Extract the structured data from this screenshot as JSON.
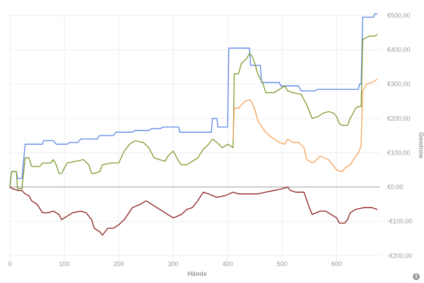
{
  "chart_data": {
    "type": "line",
    "xlabel": "Hände",
    "ylabel": "Gewinne",
    "xlim": [
      0,
      680
    ],
    "ylim": [
      -220,
      500
    ],
    "x_ticks": [
      0,
      100,
      200,
      300,
      400,
      500,
      600
    ],
    "x_tick_labels": [
      "0",
      "100",
      "200",
      "300",
      "400",
      "500",
      "600"
    ],
    "y_ticks": [
      500,
      400,
      300,
      200,
      100,
      0,
      -100,
      -200
    ],
    "y_tick_labels": [
      "€500,00",
      "€400,00",
      "€300,00",
      "€200,00",
      "€100,00",
      "€0,00",
      "-€100,00",
      "-€200,00"
    ],
    "grid": true,
    "series": [
      {
        "color": "#5b84e8",
        "points": [
          [
            0,
            0
          ],
          [
            3,
            45
          ],
          [
            12,
            45
          ],
          [
            14,
            25
          ],
          [
            22,
            25
          ],
          [
            28,
            125
          ],
          [
            60,
            125
          ],
          [
            62,
            135
          ],
          [
            80,
            135
          ],
          [
            85,
            125
          ],
          [
            105,
            125
          ],
          [
            110,
            130
          ],
          [
            125,
            130
          ],
          [
            130,
            140
          ],
          [
            160,
            140
          ],
          [
            165,
            150
          ],
          [
            190,
            150
          ],
          [
            195,
            160
          ],
          [
            225,
            160
          ],
          [
            230,
            165
          ],
          [
            255,
            165
          ],
          [
            260,
            170
          ],
          [
            275,
            170
          ],
          [
            282,
            175
          ],
          [
            310,
            175
          ],
          [
            312,
            160
          ],
          [
            370,
            160
          ],
          [
            372,
            200
          ],
          [
            380,
            200
          ],
          [
            382,
            175
          ],
          [
            400,
            175
          ],
          [
            402,
            405
          ],
          [
            440,
            405
          ],
          [
            442,
            355
          ],
          [
            460,
            355
          ],
          [
            462,
            305
          ],
          [
            495,
            305
          ],
          [
            497,
            295
          ],
          [
            530,
            295
          ],
          [
            535,
            280
          ],
          [
            560,
            280
          ],
          [
            565,
            285
          ],
          [
            640,
            285
          ],
          [
            642,
            300
          ],
          [
            645,
            300
          ],
          [
            648,
            495
          ],
          [
            668,
            495
          ],
          [
            670,
            505
          ],
          [
            675,
            505
          ]
        ]
      },
      {
        "color": "#7a9a2a",
        "points": [
          [
            0,
            0
          ],
          [
            3,
            45
          ],
          [
            12,
            45
          ],
          [
            14,
            -5
          ],
          [
            22,
            -5
          ],
          [
            28,
            85
          ],
          [
            35,
            85
          ],
          [
            40,
            60
          ],
          [
            55,
            60
          ],
          [
            60,
            70
          ],
          [
            75,
            70
          ],
          [
            80,
            80
          ],
          [
            85,
            65
          ],
          [
            90,
            40
          ],
          [
            95,
            40
          ],
          [
            100,
            55
          ],
          [
            105,
            70
          ],
          [
            120,
            75
          ],
          [
            135,
            80
          ],
          [
            145,
            65
          ],
          [
            150,
            40
          ],
          [
            155,
            40
          ],
          [
            165,
            45
          ],
          [
            170,
            65
          ],
          [
            185,
            70
          ],
          [
            200,
            70
          ],
          [
            210,
            105
          ],
          [
            220,
            125
          ],
          [
            230,
            135
          ],
          [
            245,
            130
          ],
          [
            255,
            115
          ],
          [
            265,
            85
          ],
          [
            275,
            80
          ],
          [
            285,
            75
          ],
          [
            290,
            90
          ],
          [
            300,
            105
          ],
          [
            305,
            90
          ],
          [
            310,
            75
          ],
          [
            315,
            65
          ],
          [
            325,
            65
          ],
          [
            335,
            75
          ],
          [
            345,
            85
          ],
          [
            355,
            110
          ],
          [
            365,
            125
          ],
          [
            372,
            140
          ],
          [
            380,
            130
          ],
          [
            390,
            115
          ],
          [
            400,
            125
          ],
          [
            410,
            115
          ],
          [
            412,
            330
          ],
          [
            420,
            330
          ],
          [
            425,
            360
          ],
          [
            435,
            375
          ],
          [
            440,
            390
          ],
          [
            445,
            380
          ],
          [
            450,
            360
          ],
          [
            455,
            330
          ],
          [
            465,
            300
          ],
          [
            470,
            275
          ],
          [
            485,
            275
          ],
          [
            490,
            280
          ],
          [
            505,
            295
          ],
          [
            510,
            280
          ],
          [
            520,
            275
          ],
          [
            535,
            270
          ],
          [
            545,
            240
          ],
          [
            555,
            200
          ],
          [
            565,
            205
          ],
          [
            575,
            215
          ],
          [
            585,
            220
          ],
          [
            595,
            215
          ],
          [
            600,
            205
          ],
          [
            605,
            185
          ],
          [
            610,
            180
          ],
          [
            620,
            180
          ],
          [
            625,
            200
          ],
          [
            630,
            215
          ],
          [
            635,
            230
          ],
          [
            640,
            235
          ],
          [
            645,
            235
          ],
          [
            648,
            430
          ],
          [
            660,
            440
          ],
          [
            670,
            440
          ],
          [
            675,
            445
          ]
        ]
      },
      {
        "color": "#f5a055",
        "points": [
          [
            410,
            140
          ],
          [
            412,
            230
          ],
          [
            420,
            230
          ],
          [
            425,
            240
          ],
          [
            432,
            250
          ],
          [
            440,
            255
          ],
          [
            445,
            245
          ],
          [
            450,
            225
          ],
          [
            455,
            195
          ],
          [
            465,
            170
          ],
          [
            470,
            160
          ],
          [
            480,
            145
          ],
          [
            490,
            135
          ],
          [
            495,
            130
          ],
          [
            505,
            125
          ],
          [
            510,
            140
          ],
          [
            520,
            130
          ],
          [
            530,
            130
          ],
          [
            540,
            115
          ],
          [
            545,
            80
          ],
          [
            555,
            70
          ],
          [
            560,
            75
          ],
          [
            570,
            90
          ],
          [
            585,
            80
          ],
          [
            590,
            70
          ],
          [
            595,
            60
          ],
          [
            600,
            50
          ],
          [
            610,
            45
          ],
          [
            615,
            55
          ],
          [
            620,
            60
          ],
          [
            625,
            65
          ],
          [
            635,
            90
          ],
          [
            640,
            100
          ],
          [
            645,
            120
          ],
          [
            648,
            280
          ],
          [
            655,
            300
          ],
          [
            665,
            305
          ],
          [
            670,
            310
          ],
          [
            675,
            315
          ]
        ]
      },
      {
        "color": "#8b1a1a",
        "points": [
          [
            0,
            0
          ],
          [
            5,
            -5
          ],
          [
            15,
            -10
          ],
          [
            22,
            -10
          ],
          [
            28,
            -20
          ],
          [
            35,
            -25
          ],
          [
            40,
            -40
          ],
          [
            50,
            -50
          ],
          [
            60,
            -75
          ],
          [
            70,
            -75
          ],
          [
            80,
            -70
          ],
          [
            90,
            -80
          ],
          [
            95,
            -95
          ],
          [
            100,
            -90
          ],
          [
            115,
            -75
          ],
          [
            130,
            -70
          ],
          [
            140,
            -75
          ],
          [
            150,
            -95
          ],
          [
            155,
            -120
          ],
          [
            165,
            -130
          ],
          [
            170,
            -140
          ],
          [
            180,
            -120
          ],
          [
            190,
            -120
          ],
          [
            200,
            -110
          ],
          [
            210,
            -95
          ],
          [
            225,
            -60
          ],
          [
            240,
            -50
          ],
          [
            250,
            -40
          ],
          [
            265,
            -55
          ],
          [
            280,
            -70
          ],
          [
            290,
            -80
          ],
          [
            300,
            -90
          ],
          [
            315,
            -80
          ],
          [
            325,
            -65
          ],
          [
            335,
            -60
          ],
          [
            345,
            -40
          ],
          [
            355,
            -15
          ],
          [
            365,
            -20
          ],
          [
            380,
            -30
          ],
          [
            395,
            -25
          ],
          [
            410,
            -15
          ],
          [
            420,
            -20
          ],
          [
            435,
            -20
          ],
          [
            445,
            -20
          ],
          [
            455,
            -20
          ],
          [
            470,
            -15
          ],
          [
            485,
            -10
          ],
          [
            500,
            -5
          ],
          [
            510,
            0
          ],
          [
            515,
            -10
          ],
          [
            525,
            -15
          ],
          [
            540,
            -15
          ],
          [
            550,
            -60
          ],
          [
            555,
            -80
          ],
          [
            570,
            -70
          ],
          [
            580,
            -70
          ],
          [
            590,
            -80
          ],
          [
            600,
            -90
          ],
          [
            605,
            -105
          ],
          [
            615,
            -105
          ],
          [
            620,
            -95
          ],
          [
            625,
            -75
          ],
          [
            635,
            -65
          ],
          [
            650,
            -60
          ],
          [
            665,
            -60
          ],
          [
            675,
            -65
          ]
        ]
      }
    ]
  },
  "ui": {
    "info_icon_glyph": "i"
  }
}
